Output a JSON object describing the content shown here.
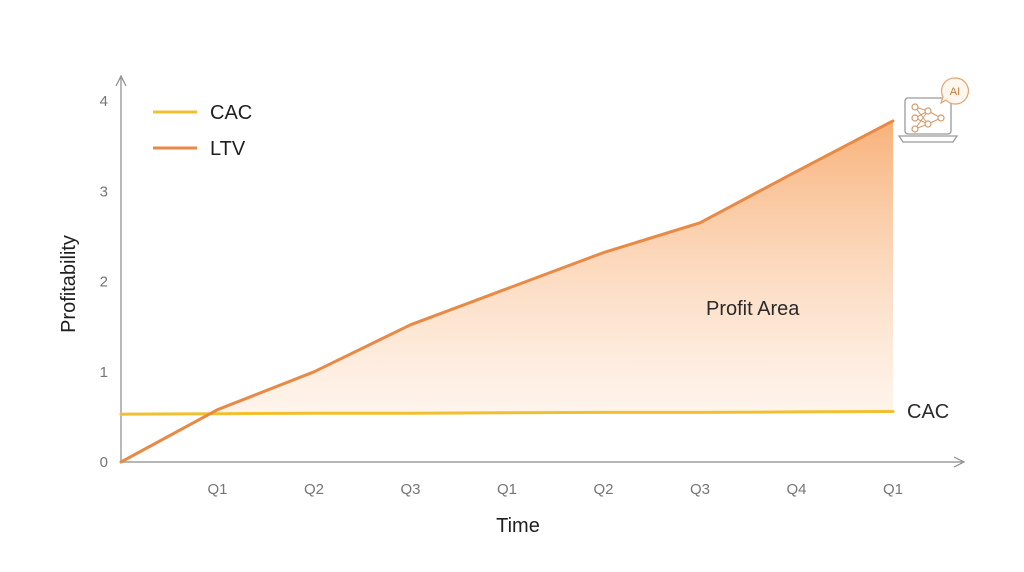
{
  "chart_data": {
    "type": "area",
    "x": [
      "",
      "Q1",
      "Q2",
      "Q3",
      "Q1",
      "Q2",
      "Q3",
      "Q4",
      "Q1"
    ],
    "xlabel": "Time",
    "ylabel": "Profitability",
    "yticks": [
      0,
      1,
      2,
      3,
      4
    ],
    "ylim": [
      0,
      4
    ],
    "grid": false,
    "legend": {
      "position": "top-left",
      "entries": [
        "CAC",
        "LTV"
      ]
    },
    "series": [
      {
        "name": "CAC",
        "color": "#f0c030",
        "values": [
          0.53,
          0.535,
          0.54,
          0.54,
          0.545,
          0.55,
          0.55,
          0.555,
          0.56
        ]
      },
      {
        "name": "LTV",
        "color": "#e88a45",
        "values": [
          0.0,
          0.58,
          1.0,
          1.52,
          1.92,
          2.32,
          2.65,
          3.22,
          3.78
        ]
      }
    ],
    "fill": {
      "between": [
        "LTV",
        "CAC"
      ],
      "color": "#f7a463"
    },
    "annotations": [
      {
        "text": "Profit Area"
      },
      {
        "text": "CAC"
      }
    ]
  },
  "icon": {
    "name": "ai-laptop-icon",
    "badge": "AI"
  }
}
